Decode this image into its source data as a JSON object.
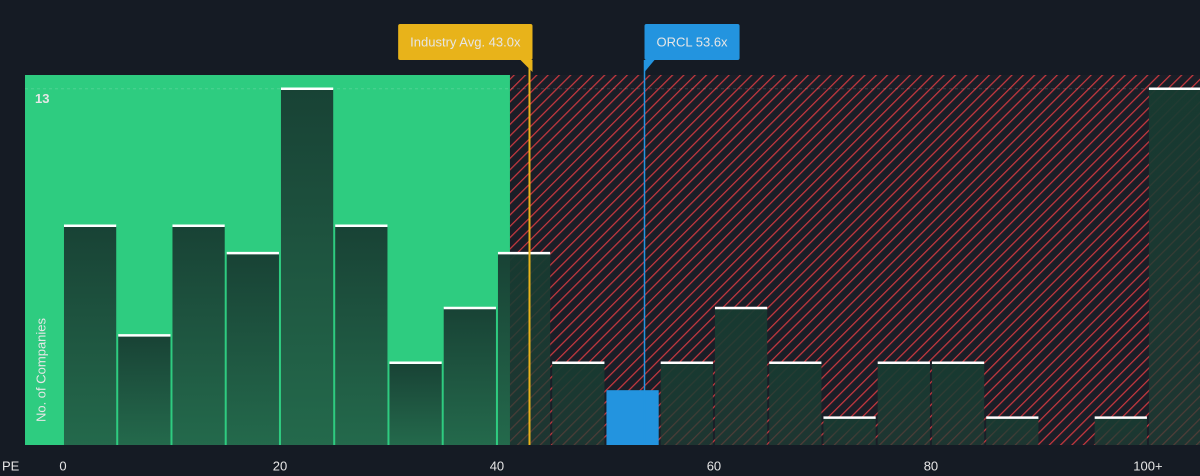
{
  "chart_data": {
    "type": "histogram",
    "xlabel": "PE",
    "ylabel": "No. of Companies",
    "bins": [
      0,
      5,
      10,
      15,
      20,
      25,
      30,
      35,
      40,
      45,
      50,
      55,
      60,
      65,
      70,
      75,
      80,
      85,
      90,
      95,
      100,
      105
    ],
    "counts": [
      8,
      4,
      8,
      7,
      13,
      8,
      3,
      5,
      7,
      3,
      2,
      3,
      5,
      3,
      1,
      3,
      3,
      1,
      0,
      1,
      13
    ],
    "xlim": [
      -3.5,
      104.8
    ],
    "ylim": [
      0,
      13.5
    ],
    "xticks": [
      0,
      20,
      40,
      60,
      80,
      {
        "value": 100,
        "label": "100+"
      }
    ],
    "yticks": [
      13
    ],
    "threshold": 41.2,
    "below_color": "#2ecc80",
    "above_color": "#c8383f",
    "annotations": [
      {
        "label": "Industry Avg. 43.0x",
        "value": 43.0,
        "color": "#e8b31a"
      },
      {
        "label": "ORCL 53.6x",
        "value": 53.6,
        "color": "#2394df"
      }
    ]
  }
}
